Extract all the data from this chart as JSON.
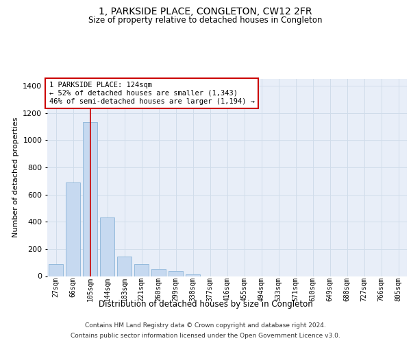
{
  "title": "1, PARKSIDE PLACE, CONGLETON, CW12 2FR",
  "subtitle": "Size of property relative to detached houses in Congleton",
  "xlabel": "Distribution of detached houses by size in Congleton",
  "ylabel": "Number of detached properties",
  "bin_labels": [
    "27sqm",
    "66sqm",
    "105sqm",
    "144sqm",
    "183sqm",
    "221sqm",
    "260sqm",
    "299sqm",
    "338sqm",
    "377sqm",
    "416sqm",
    "455sqm",
    "494sqm",
    "533sqm",
    "571sqm",
    "610sqm",
    "649sqm",
    "688sqm",
    "727sqm",
    "766sqm",
    "805sqm"
  ],
  "bar_heights": [
    90,
    690,
    1130,
    430,
    145,
    90,
    55,
    40,
    15,
    0,
    0,
    0,
    0,
    0,
    0,
    0,
    0,
    0,
    0,
    0,
    0
  ],
  "bar_color": "#c6d9f0",
  "bar_edge_color": "#8ab4d8",
  "grid_color": "#d0dcea",
  "background_color": "#e8eef8",
  "annotation_text": "1 PARKSIDE PLACE: 124sqm\n← 52% of detached houses are smaller (1,343)\n46% of semi-detached houses are larger (1,194) →",
  "annotation_box_color": "#ffffff",
  "annotation_box_edge": "#cc0000",
  "property_line_color": "#cc0000",
  "ylim": [
    0,
    1450
  ],
  "yticks": [
    0,
    200,
    400,
    600,
    800,
    1000,
    1200,
    1400
  ],
  "footer_line1": "Contains HM Land Registry data © Crown copyright and database right 2024.",
  "footer_line2": "Contains public sector information licensed under the Open Government Licence v3.0."
}
